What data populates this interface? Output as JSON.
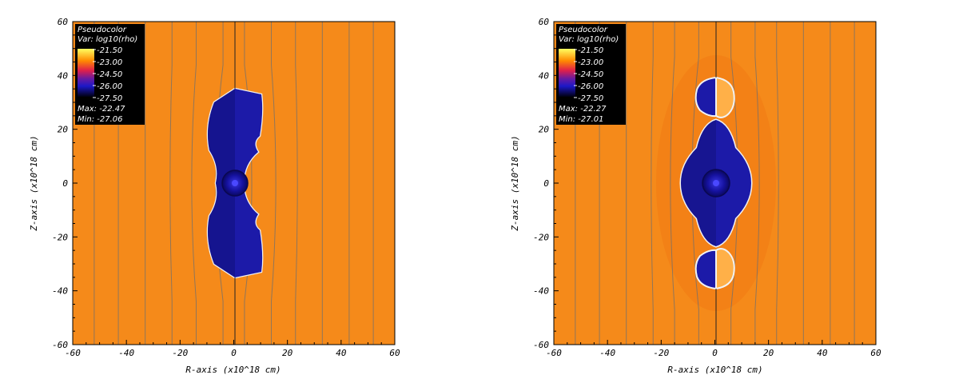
{
  "colors": {
    "ambient": "#f58a1a",
    "cavity": "#1c1aa8",
    "cavity_dark": "#0d0b60",
    "rim": "#f2f2f2",
    "field_line": "#6f6f6f",
    "legend_bg": "#000000"
  },
  "chart_data": [
    {
      "type": "heatmap",
      "title": "",
      "xlabel": "R-axis (x10^18 cm)",
      "ylabel": "Z-axis (x10^18 cm)",
      "xlim": [
        -60,
        60
      ],
      "ylim": [
        -60,
        60
      ],
      "xticks": [
        "-60",
        "-40",
        "-20",
        "0",
        "20",
        "40",
        "60"
      ],
      "yticks": [
        "60",
        "40",
        "20",
        "0",
        "-20",
        "-40",
        "-60"
      ],
      "legend": {
        "header": "Pseudocolor",
        "var": "Var: log10(rho)",
        "scale": [
          "-21.50",
          "-23.00",
          "-24.50",
          "-26.00",
          "-27.50"
        ],
        "max": "Max: -22.47",
        "min": "Min: -27.06"
      },
      "cavity": {
        "shape": "double-lobed",
        "z_extent": [
          -35,
          35
        ],
        "r_extent": [
          -11,
          11
        ]
      },
      "field_lines_r": [
        -52,
        -43,
        -33,
        -23,
        -14,
        -4,
        4,
        14,
        23,
        33,
        43,
        52
      ]
    },
    {
      "type": "heatmap",
      "title": "",
      "xlabel": "R-axis (x10^18 cm)",
      "ylabel": "Z-axis (x10^18 cm)",
      "xlim": [
        -60,
        60
      ],
      "ylim": [
        -60,
        60
      ],
      "xticks": [
        "-60",
        "-40",
        "-20",
        "0",
        "20",
        "40",
        "60"
      ],
      "yticks": [
        "60",
        "40",
        "20",
        "0",
        "-20",
        "-40",
        "-60"
      ],
      "legend": {
        "header": "Pseudocolor",
        "var": "Var: log10(rho)",
        "scale": [
          "-21.50",
          "-23.00",
          "-24.50",
          "-26.00",
          "-27.50"
        ],
        "max": "Max: -22.27",
        "min": "Min: -27.01"
      },
      "cavity": {
        "shape": "lens-with-caps",
        "z_extent": [
          -38,
          38
        ],
        "r_extent": [
          -12,
          12
        ]
      },
      "field_lines_r": [
        -52,
        -43,
        -33,
        -23,
        -15,
        -6,
        6,
        15,
        23,
        33,
        43,
        52
      ]
    }
  ]
}
